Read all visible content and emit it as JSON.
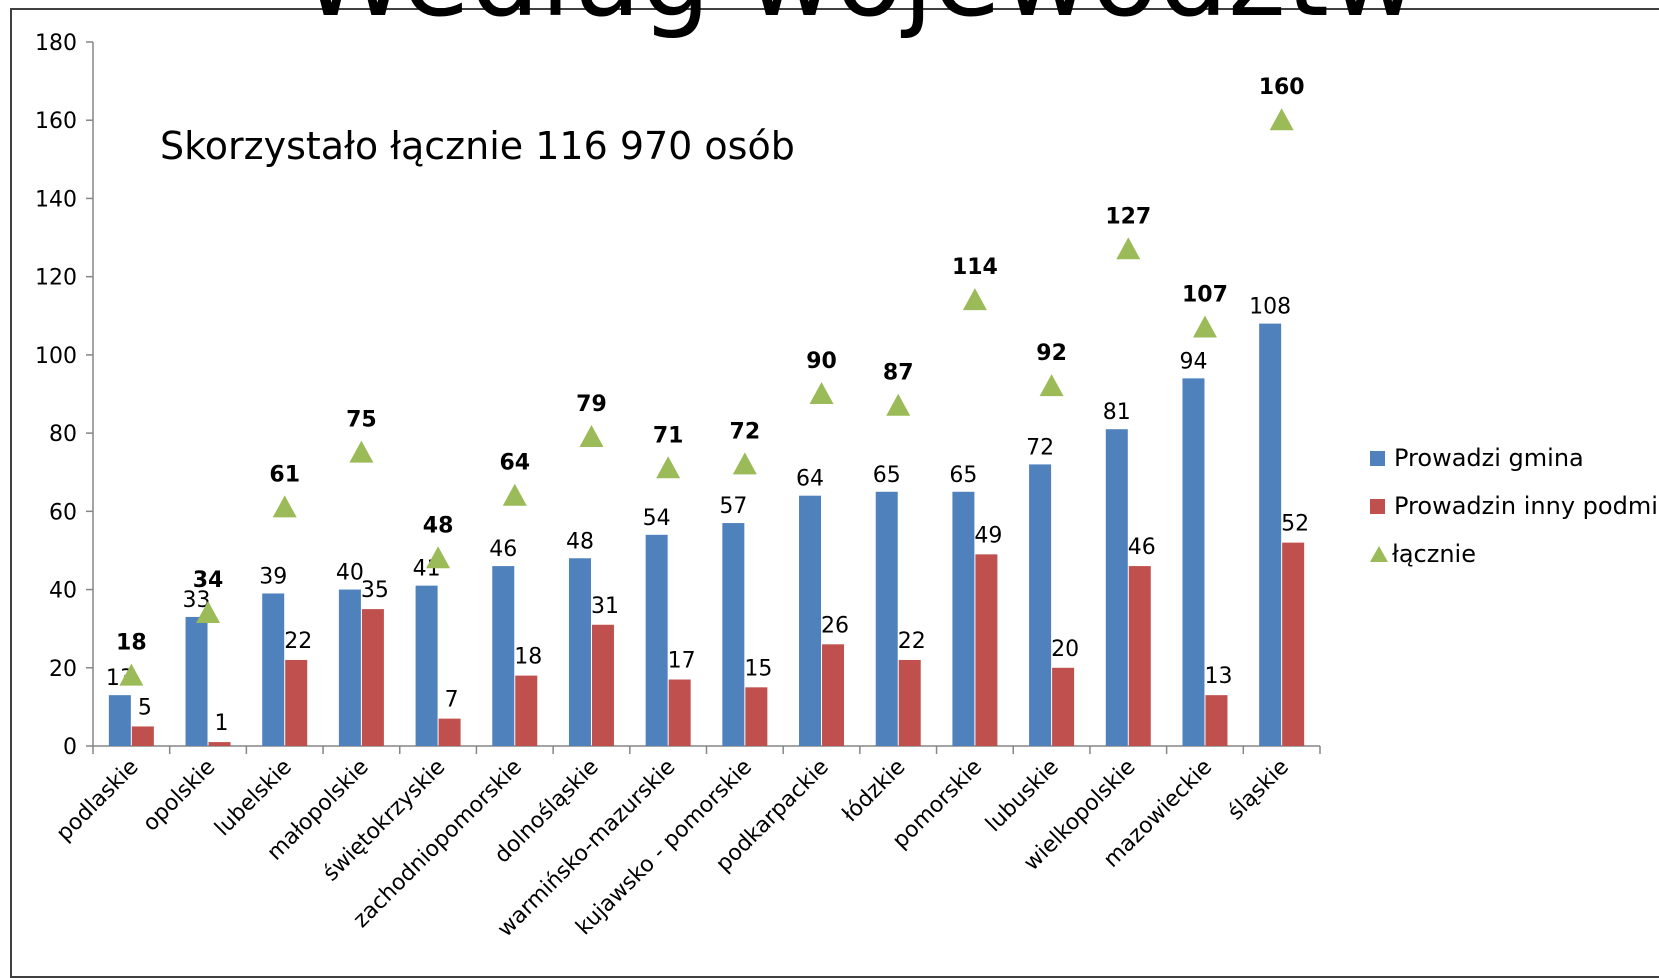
{
  "chart_data": {
    "type": "bar",
    "title": "Według województw",
    "annotation": "Skorzystało łącznie 116 970 osób",
    "categories": [
      "podlaskie",
      "opolskie",
      "lubelskie",
      "małopolskie",
      "świętokrzyskie",
      "zachodniopomorskie",
      "dolnośląskie",
      "warmińsko-mazurskie",
      "kujawsko - pomorskie",
      "podkarpackie",
      "łódzkie",
      "pomorskie",
      "lubuskie",
      "wielkopolskie",
      "mazowieckie",
      "śląskie"
    ],
    "series": [
      {
        "name": "Prowadzi gmina",
        "kind": "bar",
        "color": "#4F81BD",
        "values": [
          13,
          33,
          39,
          40,
          41,
          46,
          48,
          54,
          57,
          64,
          65,
          65,
          72,
          81,
          94,
          108
        ]
      },
      {
        "name": "Prowadzin inny podmiot",
        "kind": "bar",
        "color": "#C0504D",
        "values": [
          5,
          1,
          22,
          35,
          7,
          18,
          31,
          17,
          15,
          26,
          22,
          49,
          20,
          46,
          13,
          52
        ]
      },
      {
        "name": "łącznie",
        "kind": "marker-triangle",
        "color": "#9BBB59",
        "values": [
          18,
          34,
          61,
          75,
          48,
          64,
          79,
          71,
          72,
          90,
          87,
          114,
          92,
          127,
          107,
          160
        ]
      }
    ],
    "ylim": [
      0,
      180
    ],
    "yticks": [
      0,
      20,
      40,
      60,
      80,
      100,
      120,
      140,
      160,
      180
    ],
    "grid": false,
    "legend_position": "right"
  }
}
